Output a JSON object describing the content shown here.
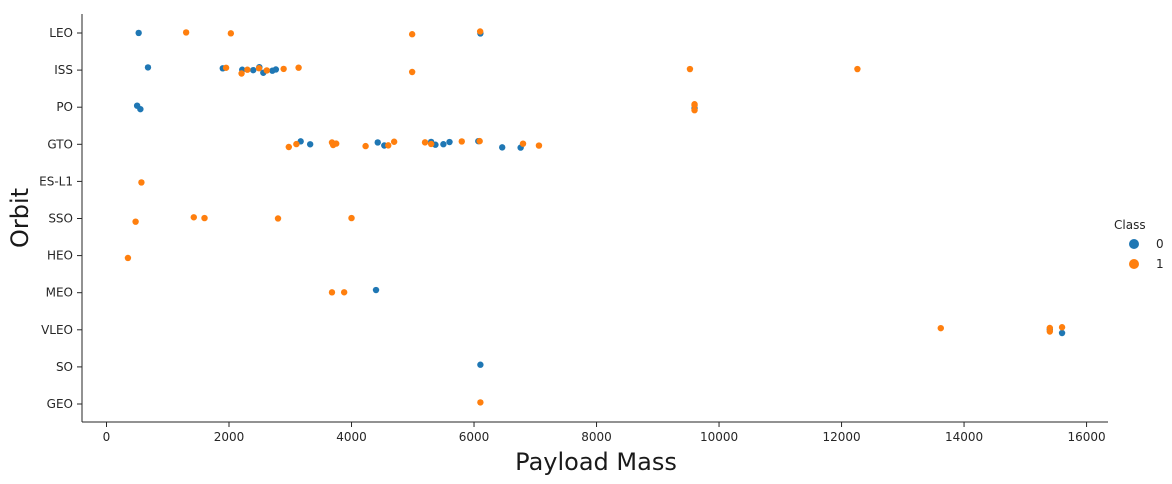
{
  "chart_data": {
    "type": "scatter",
    "title": "",
    "xlabel": "Payload Mass",
    "ylabel": "Orbit",
    "xlim": [
      -400,
      16350
    ],
    "xticks": [
      0,
      2000,
      4000,
      6000,
      8000,
      10000,
      12000,
      14000,
      16000
    ],
    "categories": [
      "LEO",
      "ISS",
      "PO",
      "GTO",
      "ES-L1",
      "SSO",
      "HEO",
      "MEO",
      "VLEO",
      "SO",
      "GEO"
    ],
    "grid": false,
    "legend": {
      "title": "Class",
      "placement": "right",
      "entries": [
        {
          "label": "0",
          "color": "#1f77b4"
        },
        {
          "label": "1",
          "color": "#ff7f0e"
        }
      ]
    },
    "series": [
      {
        "name": "0",
        "color": "#1f77b4",
        "points": [
          {
            "x": 525,
            "y": "LEO"
          },
          {
            "x": 6104,
            "y": "LEO"
          },
          {
            "x": 677,
            "y": "ISS"
          },
          {
            "x": 1898,
            "y": "ISS"
          },
          {
            "x": 2216,
            "y": "ISS"
          },
          {
            "x": 2395,
            "y": "ISS"
          },
          {
            "x": 2495,
            "y": "ISS"
          },
          {
            "x": 2560,
            "y": "ISS"
          },
          {
            "x": 2708,
            "y": "ISS"
          },
          {
            "x": 2765,
            "y": "ISS"
          },
          {
            "x": 500,
            "y": "PO"
          },
          {
            "x": 553,
            "y": "PO"
          },
          {
            "x": 9600,
            "y": "PO"
          },
          {
            "x": 3170,
            "y": "GTO"
          },
          {
            "x": 3325,
            "y": "GTO"
          },
          {
            "x": 4428,
            "y": "GTO"
          },
          {
            "x": 4535,
            "y": "GTO"
          },
          {
            "x": 5300,
            "y": "GTO"
          },
          {
            "x": 5370,
            "y": "GTO"
          },
          {
            "x": 5500,
            "y": "GTO"
          },
          {
            "x": 5600,
            "y": "GTO"
          },
          {
            "x": 6070,
            "y": "GTO"
          },
          {
            "x": 6460,
            "y": "GTO"
          },
          {
            "x": 6761,
            "y": "GTO"
          },
          {
            "x": 4400,
            "y": "MEO"
          },
          {
            "x": 15400,
            "y": "VLEO"
          },
          {
            "x": 15600,
            "y": "VLEO"
          },
          {
            "x": 6104,
            "y": "SO"
          }
        ]
      },
      {
        "name": "1",
        "color": "#ff7f0e",
        "points": [
          {
            "x": 1300,
            "y": "LEO"
          },
          {
            "x": 2030,
            "y": "LEO"
          },
          {
            "x": 4990,
            "y": "LEO"
          },
          {
            "x": 6100,
            "y": "LEO"
          },
          {
            "x": 1952,
            "y": "ISS"
          },
          {
            "x": 2205,
            "y": "ISS"
          },
          {
            "x": 2300,
            "y": "ISS"
          },
          {
            "x": 2490,
            "y": "ISS"
          },
          {
            "x": 2617,
            "y": "ISS"
          },
          {
            "x": 2892,
            "y": "ISS"
          },
          {
            "x": 3136,
            "y": "ISS"
          },
          {
            "x": 4990,
            "y": "ISS"
          },
          {
            "x": 9525,
            "y": "ISS"
          },
          {
            "x": 12259,
            "y": "ISS"
          },
          {
            "x": 9600,
            "y": "PO"
          },
          {
            "x": 9600,
            "y": "PO"
          },
          {
            "x": 9600,
            "y": "PO"
          },
          {
            "x": 2976,
            "y": "GTO"
          },
          {
            "x": 3100,
            "y": "GTO"
          },
          {
            "x": 3681,
            "y": "GTO"
          },
          {
            "x": 3700,
            "y": "GTO"
          },
          {
            "x": 3750,
            "y": "GTO"
          },
          {
            "x": 4230,
            "y": "GTO"
          },
          {
            "x": 4600,
            "y": "GTO"
          },
          {
            "x": 4696,
            "y": "GTO"
          },
          {
            "x": 5200,
            "y": "GTO"
          },
          {
            "x": 5300,
            "y": "GTO"
          },
          {
            "x": 5800,
            "y": "GTO"
          },
          {
            "x": 6092,
            "y": "GTO"
          },
          {
            "x": 6800,
            "y": "GTO"
          },
          {
            "x": 7060,
            "y": "GTO"
          },
          {
            "x": 570,
            "y": "ES-L1"
          },
          {
            "x": 475,
            "y": "SSO"
          },
          {
            "x": 1425,
            "y": "SSO"
          },
          {
            "x": 1600,
            "y": "SSO"
          },
          {
            "x": 2800,
            "y": "SSO"
          },
          {
            "x": 4000,
            "y": "SSO"
          },
          {
            "x": 350,
            "y": "HEO"
          },
          {
            "x": 3681,
            "y": "MEO"
          },
          {
            "x": 3880,
            "y": "MEO"
          },
          {
            "x": 13620,
            "y": "VLEO"
          },
          {
            "x": 15400,
            "y": "VLEO"
          },
          {
            "x": 15400,
            "y": "VLEO"
          },
          {
            "x": 15600,
            "y": "VLEO"
          },
          {
            "x": 6104,
            "y": "GEO"
          }
        ]
      }
    ]
  }
}
